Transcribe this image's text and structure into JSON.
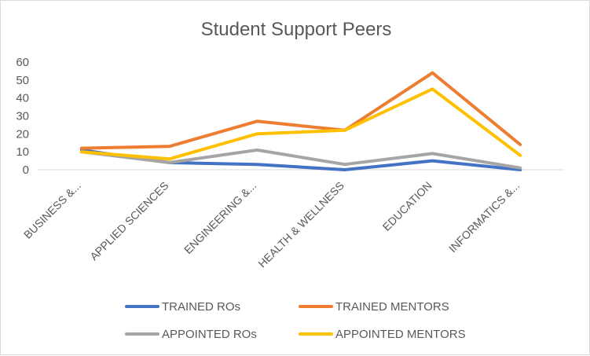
{
  "chart_data": {
    "type": "line",
    "title": "Student Support Peers",
    "xlabel": "",
    "ylabel": "",
    "categories": [
      "BUSINESS &...",
      "APPLIED SCIENCES",
      "ENGINEERING &...",
      "HEALTH & WELLNESS",
      "EDUCATION",
      "INFORMATICS &..."
    ],
    "y_ticks": [
      "0",
      "10",
      "20",
      "30",
      "40",
      "50",
      "60"
    ],
    "ylim": [
      0,
      60
    ],
    "grid": false,
    "legend_position": "bottom",
    "series": [
      {
        "name": "TRAINED ROs",
        "color": "#4472C4",
        "values": [
          11,
          4,
          3,
          0,
          5,
          0
        ]
      },
      {
        "name": "TRAINED MENTORS",
        "color": "#ED7D31",
        "values": [
          12,
          13,
          27,
          22,
          54,
          14
        ]
      },
      {
        "name": "APPOINTED ROs",
        "color": "#A5A5A5",
        "values": [
          10,
          4,
          11,
          3,
          9,
          1
        ]
      },
      {
        "name": "APPOINTED MENTORS",
        "color": "#FFC000",
        "values": [
          10,
          6,
          20,
          22,
          45,
          8
        ]
      }
    ]
  }
}
